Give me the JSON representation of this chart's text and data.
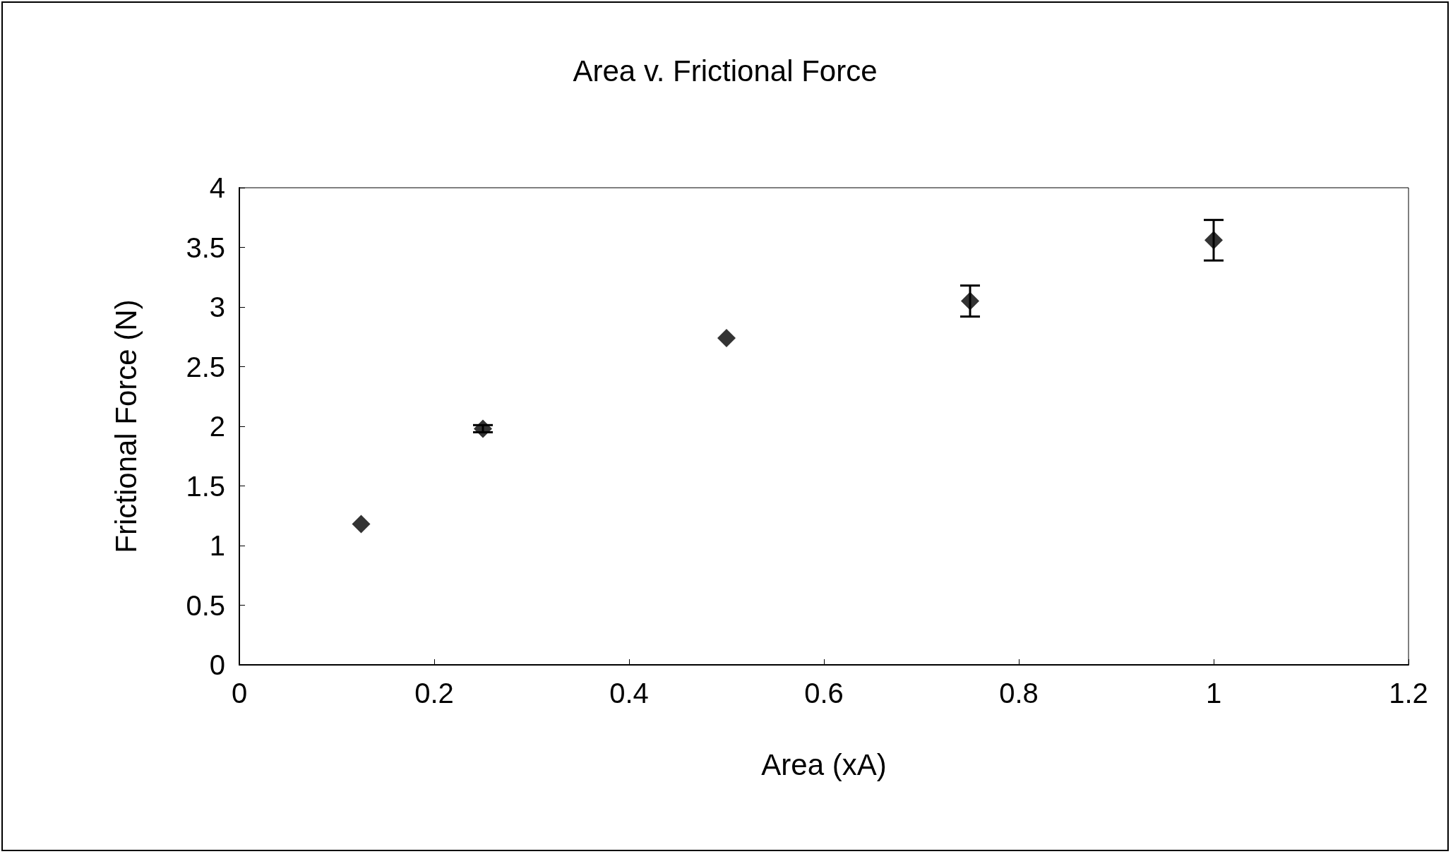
{
  "chart_data": {
    "type": "scatter",
    "title": "Area v. Frictional Force",
    "xlabel": "Area (xA)",
    "ylabel": "Frictional Force (N)",
    "x": [
      0.125,
      0.25,
      0.5,
      0.75,
      1.0
    ],
    "series": [
      {
        "color": "#000000",
        "values": [
          1.18,
          1.98,
          2.74,
          3.05,
          3.56
        ],
        "errors": [
          null,
          0.03,
          null,
          0.13,
          0.17
        ]
      }
    ],
    "xlim": [
      0,
      1.2
    ],
    "xticks": [
      0,
      0.2,
      0.4,
      0.6,
      0.8,
      1,
      1.2
    ],
    "ylim": [
      0,
      4
    ],
    "yticks": [
      0,
      0.5,
      1,
      1.5,
      2,
      2.5,
      3,
      3.5,
      4
    ],
    "marker": "diamond",
    "grid": false
  }
}
